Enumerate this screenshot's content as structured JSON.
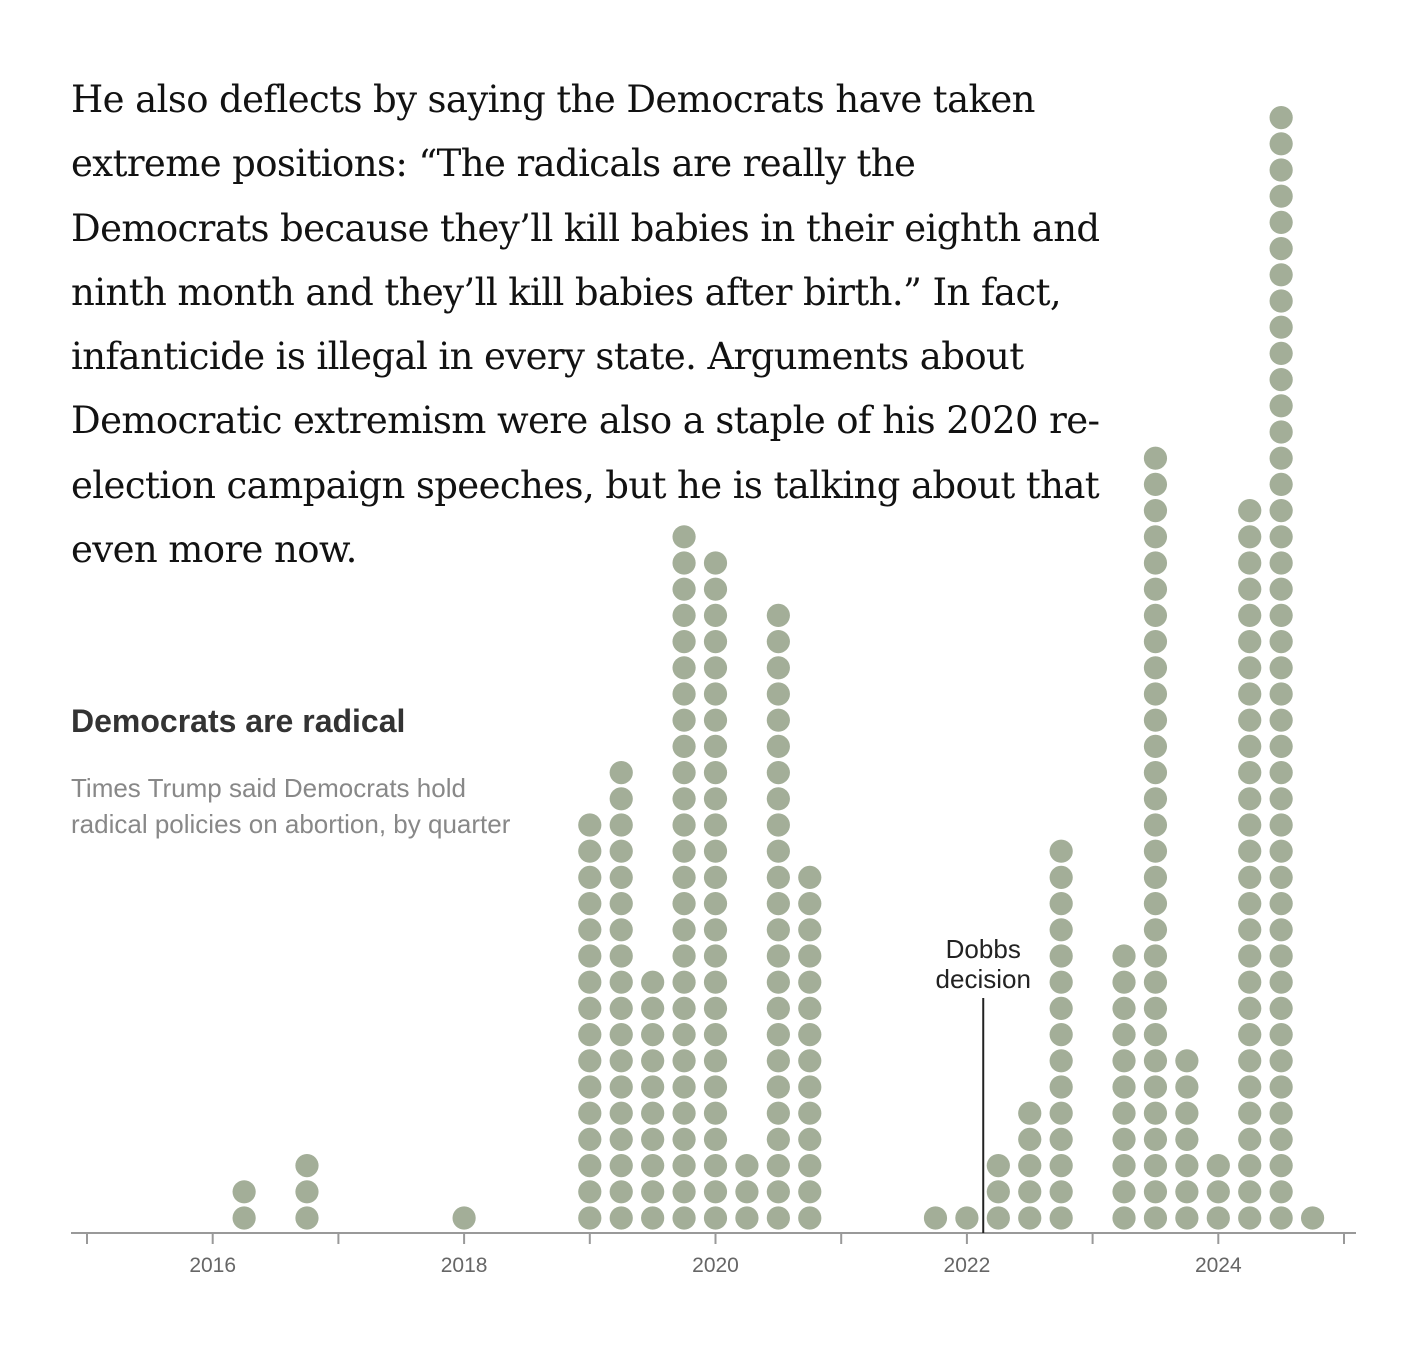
{
  "paragraph": {
    "text": "He also deflects by saying the Democrats have taken extreme positions: “The radicals are really the Democrats because they’ll kill babies in their eighth and ninth month and they’ll kill babies after birth.” In fact, infanticide is illegal in every state. Arguments about Democratic extremism were also a staple of his 2020 re-election campaign speeches, but he is talking about that even more now."
  },
  "chart_data": {
    "type": "dot-column",
    "title": "Democrats are radical",
    "subtitle": "Times Trump said Democrats hold radical policies on abortion, by quarter",
    "dot_color": "#a3ae98",
    "x_domain": [
      2015,
      2025
    ],
    "tick_years": [
      2015,
      2016,
      2017,
      2018,
      2019,
      2020,
      2021,
      2022,
      2023,
      2024,
      2025
    ],
    "tick_labels": [
      "2016",
      "2018",
      "2020",
      "2022",
      "2024"
    ],
    "series": [
      {
        "period": "2016 Q2",
        "x": 2016.25,
        "value": 2
      },
      {
        "period": "2016 Q4",
        "x": 2016.75,
        "value": 3
      },
      {
        "period": "2018 Q1",
        "x": 2018.0,
        "value": 1
      },
      {
        "period": "2019 Q1",
        "x": 2019.0,
        "value": 16
      },
      {
        "period": "2019 Q2",
        "x": 2019.25,
        "value": 18
      },
      {
        "period": "2019 Q3",
        "x": 2019.5,
        "value": 10
      },
      {
        "period": "2019 Q4",
        "x": 2019.75,
        "value": 27
      },
      {
        "period": "2020 Q1",
        "x": 2020.0,
        "value": 26
      },
      {
        "period": "2020 Q2",
        "x": 2020.25,
        "value": 3
      },
      {
        "period": "2020 Q3",
        "x": 2020.5,
        "value": 24
      },
      {
        "period": "2020 Q4",
        "x": 2020.75,
        "value": 14
      },
      {
        "period": "2021 Q4",
        "x": 2021.75,
        "value": 1
      },
      {
        "period": "2022 Q1",
        "x": 2022.0,
        "value": 1
      },
      {
        "period": "2022 Q2",
        "x": 2022.25,
        "value": 3
      },
      {
        "period": "2022 Q3",
        "x": 2022.5,
        "value": 5
      },
      {
        "period": "2022 Q4",
        "x": 2022.75,
        "value": 15
      },
      {
        "period": "2023 Q2",
        "x": 2023.25,
        "value": 11
      },
      {
        "period": "2023 Q3",
        "x": 2023.5,
        "value": 30
      },
      {
        "period": "2023 Q4",
        "x": 2023.75,
        "value": 7
      },
      {
        "period": "2024 Q1",
        "x": 2024.0,
        "value": 3
      },
      {
        "period": "2024 Q2",
        "x": 2024.25,
        "value": 28
      },
      {
        "period": "2024 Q3",
        "x": 2024.5,
        "value": 43
      },
      {
        "period": "2024 Q4",
        "x": 2024.75,
        "value": 1
      }
    ],
    "annotations": [
      {
        "x": 2022.13,
        "lines": [
          "Dobbs",
          "decision"
        ]
      }
    ]
  }
}
